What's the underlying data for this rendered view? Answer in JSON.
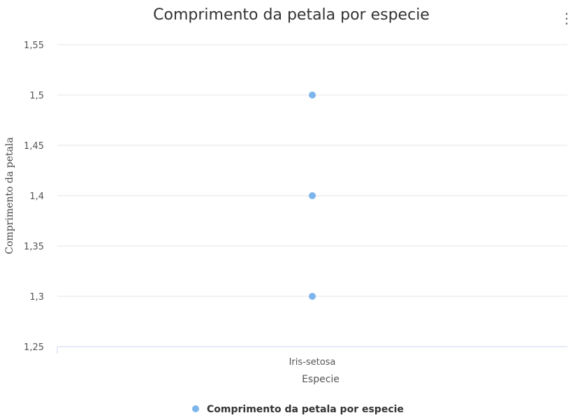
{
  "menu": {
    "icon": "vertical-ellipsis-icon",
    "glyph": "⋮"
  },
  "chart_data": {
    "type": "scatter",
    "title": "Comprimento da petala por especie",
    "xlabel": "Especie",
    "ylabel": "Comprimento da petala",
    "categories": [
      "Iris-setosa"
    ],
    "ylim": [
      1.25,
      1.55
    ],
    "yticks": [
      1.25,
      1.3,
      1.35,
      1.4,
      1.45,
      1.5,
      1.55
    ],
    "ytick_labels": [
      "1,25",
      "1,3",
      "1,35",
      "1,4",
      "1,45",
      "1,5",
      "1,55"
    ],
    "grid": true,
    "legend_position": "bottom",
    "series": [
      {
        "name": "Comprimento da petala por especie",
        "color": "#7cb5ec",
        "points": [
          {
            "x": "Iris-setosa",
            "y": 1.5
          },
          {
            "x": "Iris-setosa",
            "y": 1.4
          },
          {
            "x": "Iris-setosa",
            "y": 1.3
          }
        ]
      }
    ],
    "colors": {
      "grid": "#e6e6e6",
      "axis_line": "#ccd6eb"
    }
  }
}
